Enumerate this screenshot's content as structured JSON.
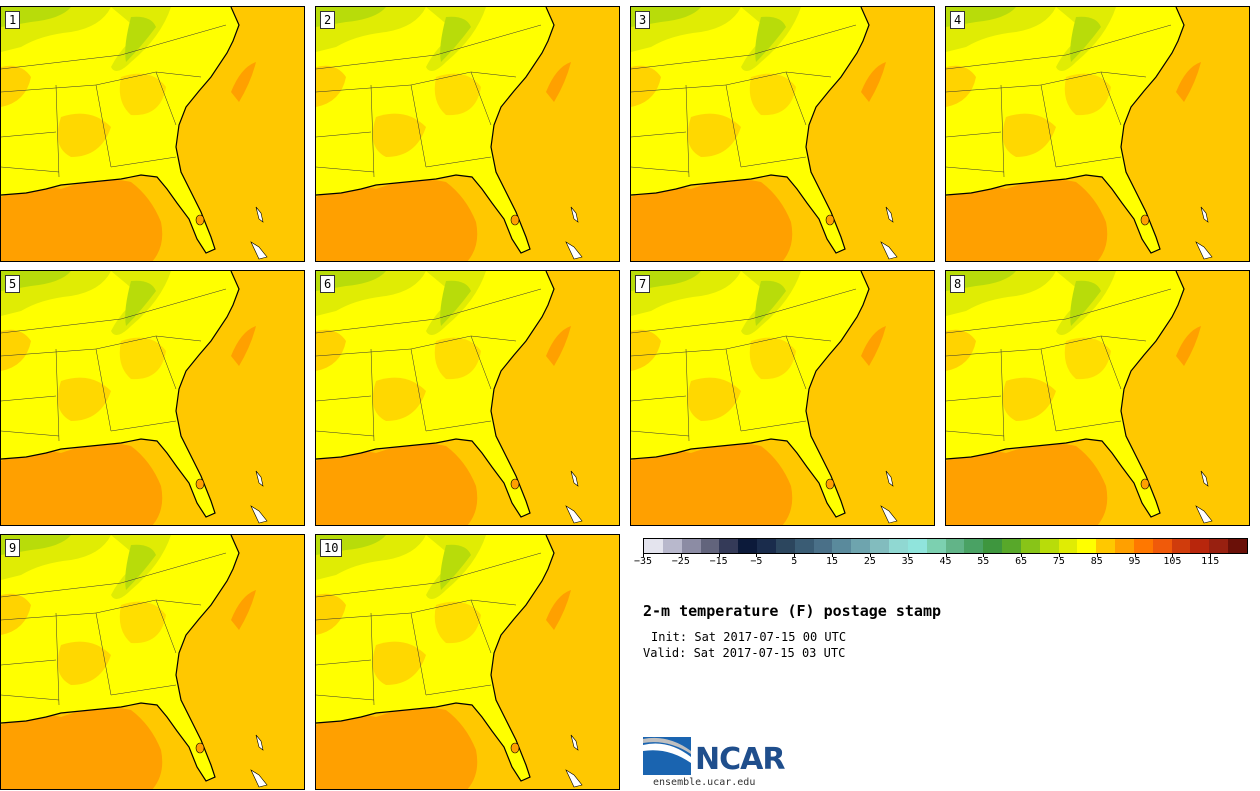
{
  "panels": [
    {
      "id": "1"
    },
    {
      "id": "2"
    },
    {
      "id": "3"
    },
    {
      "id": "4"
    },
    {
      "id": "5"
    },
    {
      "id": "6"
    },
    {
      "id": "7"
    },
    {
      "id": "8"
    },
    {
      "id": "9"
    },
    {
      "id": "10"
    }
  ],
  "colorbar": {
    "colors": [
      "#e4e4ee",
      "#b8b8cc",
      "#8c8ca4",
      "#62647c",
      "#343a58",
      "#0c1a3a",
      "#1a2c4c",
      "#2c465e",
      "#3a5c74",
      "#4a7088",
      "#5a8a9c",
      "#6ea4ae",
      "#82bcbe",
      "#90d8d2",
      "#90e4dc",
      "#7cd0b0",
      "#62b488",
      "#4aa264",
      "#3e963e",
      "#58a82a",
      "#88c418",
      "#b8dc0a",
      "#e0ec04",
      "#ffff00",
      "#ffc800",
      "#ffa000",
      "#ff7800",
      "#f05a0a",
      "#d03c0c",
      "#b8260c",
      "#982010",
      "#6a1008"
    ],
    "ticks": [
      "−35",
      "−25",
      "−15",
      "−5",
      "5",
      "15",
      "25",
      "35",
      "45",
      "55",
      "65",
      "75",
      "85",
      "95",
      "105",
      "115"
    ]
  },
  "title": "2-m temperature (F) postage stamp",
  "init": "Init: Sat 2017-07-15 00 UTC",
  "valid": "Valid: Sat 2017-07-15 03 UTC",
  "logo": {
    "name": "NCAR",
    "url": "ensemble.ucar.edu"
  },
  "map_colors": {
    "ocean": "#ffc800",
    "land": "#ffff00",
    "warm": "#ffa000",
    "cool": "#e0ec04",
    "cooler": "#b8dc0a"
  }
}
